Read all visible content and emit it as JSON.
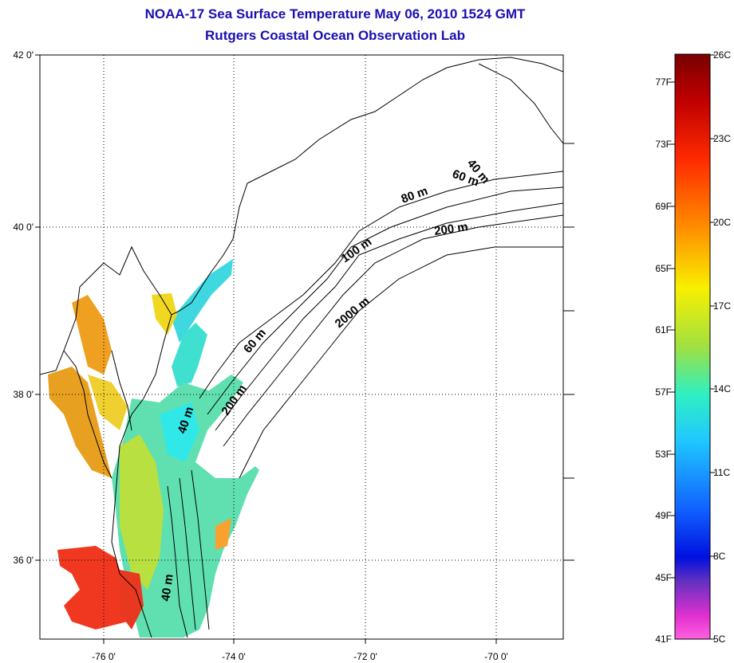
{
  "title": "NOAA-17 Sea Surface Temperature May 06, 2010 1524 GMT",
  "subtitle": "Rutgers Coastal Ocean Observation Lab",
  "map": {
    "lon_labels": [
      "-76 0'",
      "-74 0'",
      "-72 0'",
      "-70 0'"
    ],
    "lat_labels": [
      "42 0'",
      "40 0'",
      "38 0'",
      "36 0'"
    ],
    "grid": true,
    "contour_labels": [
      "40 m",
      "60 m",
      "80 m",
      "200 m",
      "100 m",
      "2000 m",
      "60 m",
      "200 m",
      "40 m",
      "40 m"
    ]
  },
  "colorbar": {
    "fahrenheit_labels": [
      "77F",
      "73F",
      "69F",
      "65F",
      "61F",
      "57F",
      "53F",
      "49F",
      "45F",
      "41F"
    ],
    "celsius_labels": [
      "26C",
      "23C",
      "20C",
      "17C",
      "14C",
      "11C",
      "8C",
      "5C"
    ],
    "range_celsius": [
      5,
      26
    ]
  },
  "colors": {
    "title": "#1a0fb0",
    "warm": "#e8301a",
    "mid": "#f0e020",
    "cool": "#30e0d8",
    "cold": "#1040ff"
  }
}
